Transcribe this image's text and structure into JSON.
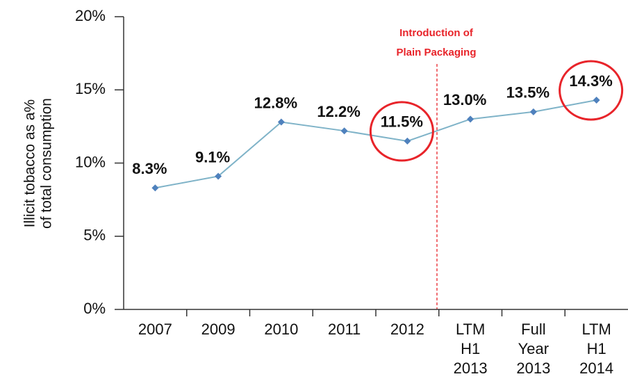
{
  "chart_data": {
    "type": "line",
    "ylabel": [
      "Illicit tobacco as a%",
      "of total consumption"
    ],
    "annotation": [
      "Introduction of",
      "Plain Packaging"
    ],
    "categories": [
      "2007",
      "2009",
      "2010",
      "2011",
      "2012",
      "LTM H1 2013",
      "Full Year 2013",
      "LTM H1 2014"
    ],
    "series": [
      {
        "color": "#7fb3c8",
        "marker_color": "#4f81bd",
        "values": [
          8.3,
          9.1,
          12.8,
          12.2,
          11.5,
          13.0,
          13.5,
          14.3
        ],
        "value_labels": [
          "8.3%",
          "9.1%",
          "12.8%",
          "12.2%",
          "11.5%",
          "13.0%",
          "13.5%",
          "14.3%"
        ]
      }
    ],
    "ylim": [
      0,
      20
    ],
    "yticks": [
      {
        "value": 0,
        "label": "0%"
      },
      {
        "value": 5,
        "label": "5%"
      },
      {
        "value": 10,
        "label": "10%"
      },
      {
        "value": 15,
        "label": "15%"
      },
      {
        "value": 20,
        "label": "20%"
      }
    ]
  }
}
